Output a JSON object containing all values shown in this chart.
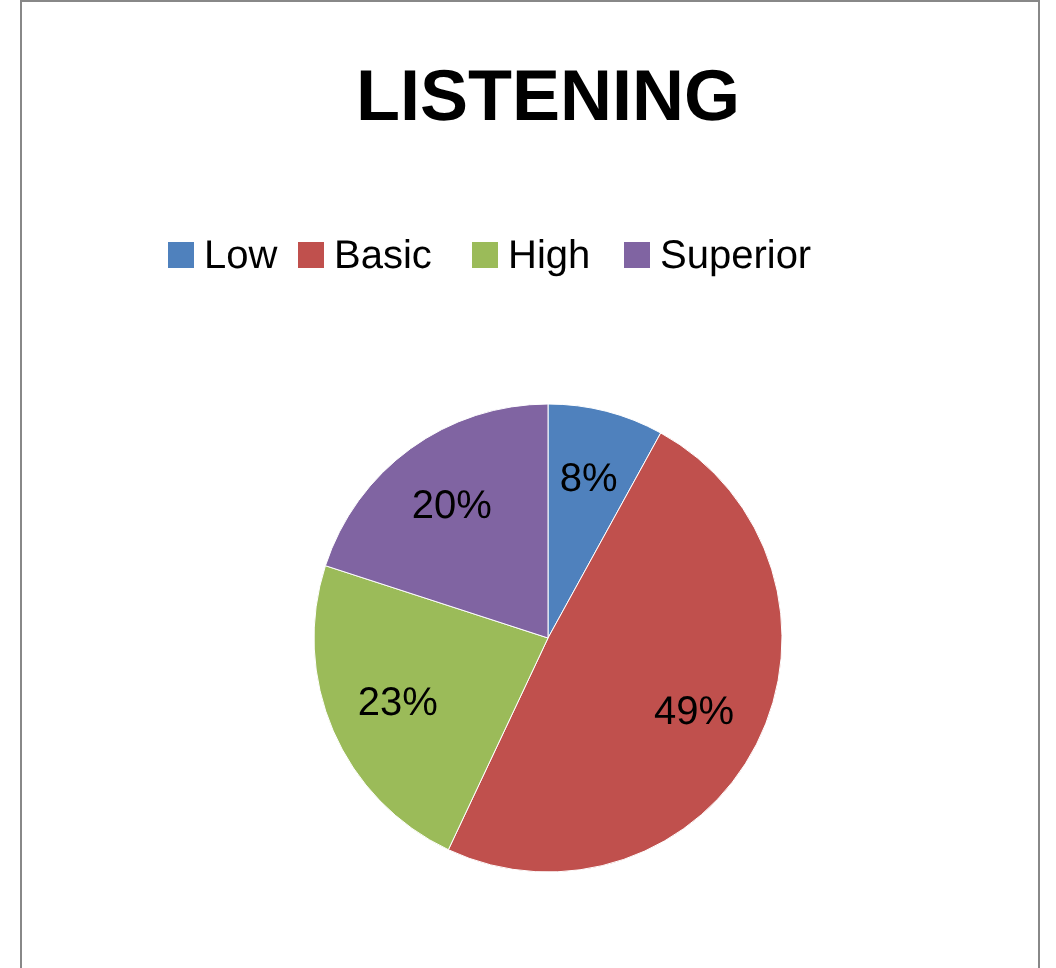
{
  "chart_data": {
    "type": "pie",
    "title": "LISTENING",
    "categories": [
      "Low",
      "Basic",
      "High",
      "Superior"
    ],
    "values": [
      8,
      49,
      23,
      20
    ],
    "colors": [
      "#4f81bd",
      "#c0504d",
      "#9bbb59",
      "#8064a2"
    ],
    "value_labels": [
      "8%",
      "49%",
      "23%",
      "20%"
    ],
    "legend": "top"
  }
}
